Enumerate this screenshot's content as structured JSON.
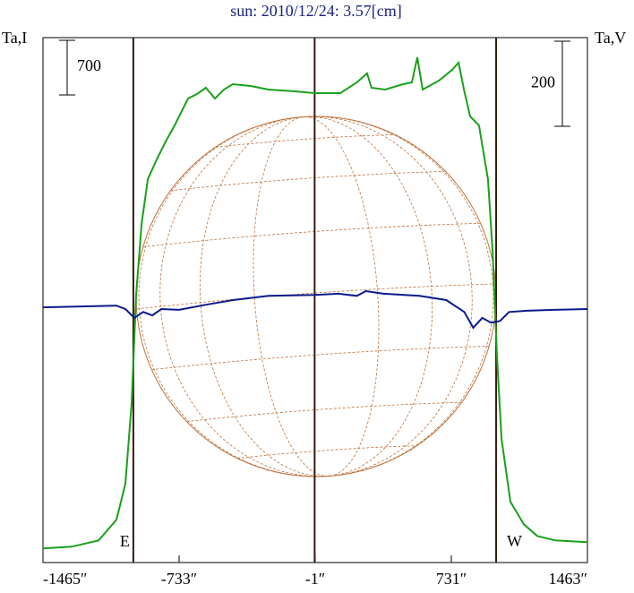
{
  "chart_data": {
    "type": "line",
    "title": "sun: 2010/12/24: 3.57[cm]",
    "ylabel": "Ta,I",
    "y2label": "Ta,V",
    "xlim": [
      -1465,
      1463
    ],
    "xticks": [
      {
        "value": -1465,
        "label": "-1465″"
      },
      {
        "value": -733,
        "label": "-733″"
      },
      {
        "value": -1,
        "label": "-1″"
      },
      {
        "value": 731,
        "label": "731″"
      },
      {
        "value": 1463,
        "label": "1463″"
      }
    ],
    "ylim": [
      -180,
      6540
    ],
    "y2lim": [
      -600,
      634
    ],
    "scale_bars": [
      {
        "value": 700,
        "axis": "y"
      },
      {
        "value": 200,
        "axis": "y2"
      }
    ],
    "limb_lines": [
      {
        "x": -979,
        "label": "E"
      },
      {
        "x": -4
      },
      {
        "x": 972,
        "label": "W"
      }
    ],
    "series": [
      {
        "name": "I",
        "color": "#1aa01a",
        "axis": "y",
        "x": [
          -1465,
          -1311,
          -1166,
          -1070,
          -1022,
          -988,
          -964,
          -935,
          -901,
          -853,
          -805,
          -757,
          -685,
          -637,
          -589,
          -540,
          -492,
          -444,
          -348,
          -252,
          -107,
          -4,
          134,
          223,
          278,
          302,
          375,
          471,
          519,
          548,
          577,
          664,
          736,
          770,
          799,
          832,
          880,
          928,
          953,
          977,
          1001,
          1049,
          1121,
          1193,
          1290,
          1463
        ],
        "values": [
          0,
          23,
          103,
          367,
          826,
          1859,
          3236,
          4154,
          4729,
          4981,
          5210,
          5416,
          5760,
          5817,
          5898,
          5760,
          5875,
          5944,
          5921,
          5875,
          5852,
          5829,
          5829,
          5967,
          6082,
          5898,
          5875,
          5944,
          5967,
          6289,
          5875,
          5990,
          6128,
          6220,
          5875,
          5531,
          5416,
          4729,
          3811,
          2434,
          1401,
          597,
          310,
          161,
          103,
          80
        ]
      },
      {
        "name": "V",
        "color": "#0a1a8c",
        "axis": "y2",
        "x": [
          -1465,
          -1070,
          -1022,
          -974,
          -926,
          -877,
          -829,
          -733,
          -589,
          -444,
          -252,
          -4,
          126,
          223,
          271,
          367,
          560,
          704,
          801,
          849,
          897,
          945,
          993,
          1041,
          1138,
          1282,
          1463
        ],
        "values": [
          0,
          4,
          -4,
          -25,
          -11,
          -19,
          -4,
          -6,
          6,
          17,
          27,
          29,
          32,
          27,
          38,
          32,
          27,
          17,
          -11,
          -48,
          -25,
          -36,
          -32,
          -11,
          -8,
          -6,
          -4
        ]
      }
    ]
  }
}
